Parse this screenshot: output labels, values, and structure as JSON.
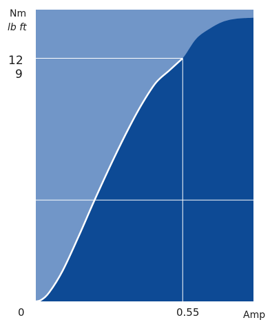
{
  "chart_data": {
    "type": "area",
    "title": "",
    "y_unit_primary": "Nm",
    "y_unit_secondary": "lb ft",
    "x_unit": "Amp",
    "y_ticks": [
      {
        "label": "12",
        "value": 12
      },
      {
        "label": "9",
        "value": 9
      }
    ],
    "x_ticks": [
      {
        "label": "0",
        "value": 0
      },
      {
        "label": "0.55",
        "value": 0.55
      }
    ],
    "xlim": [
      0,
      0.815
    ],
    "ylim": [
      0,
      14.4
    ],
    "reference_lines": {
      "x": [
        0.55
      ],
      "y_full_width": [
        5.0
      ],
      "y_to_x_marker": [
        12
      ]
    },
    "series": [
      {
        "x": [
          0,
          0.02,
          0.05,
          0.1,
          0.16,
          0.22,
          0.29,
          0.35,
          0.4,
          0.45,
          0.5,
          0.55,
          0.6,
          0.65,
          0.7,
          0.75,
          0.815
        ],
        "values": [
          0,
          0.07,
          0.44,
          1.5,
          3.2,
          5.0,
          7.0,
          8.6,
          9.8,
          10.8,
          11.4,
          12.0,
          12.95,
          13.45,
          13.8,
          13.95,
          14.0
        ]
      }
    ],
    "colors": {
      "background_area": "#7196c8",
      "filled_area": "#0d4a95",
      "curve": "#ffffff",
      "gridlines": "#ffffff"
    }
  }
}
